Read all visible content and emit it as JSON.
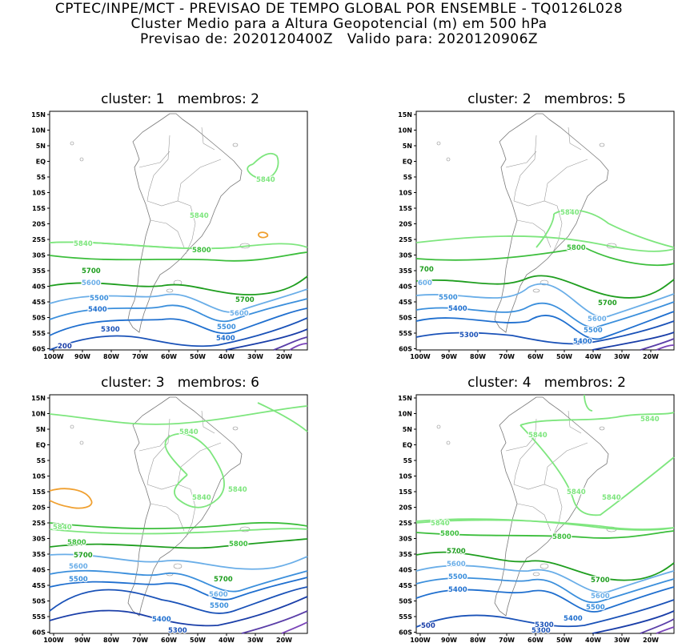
{
  "header": {
    "line1": "CPTEC/INPE/MCT - PREVISAO DE TEMPO GLOBAL POR ENSEMBLE - TQ0126L028",
    "line2": "Cluster Medio para a Altura Geopotencial (m) em 500 hPa",
    "line3": "Previsao de: 2020120400Z   Valido para: 2020120906Z"
  },
  "axes": {
    "lat_labels": [
      "15N",
      "10N",
      "5N",
      "EQ",
      "5S",
      "10S",
      "15S",
      "20S",
      "25S",
      "30S",
      "35S",
      "40S",
      "45S",
      "50S",
      "55S",
      "60S"
    ],
    "lon_labels": [
      "100W",
      "90W",
      "80W",
      "70W",
      "60W",
      "50W",
      "40W",
      "30W",
      "20W"
    ]
  },
  "panels": [
    {
      "title": "cluster: 1   membros: 2",
      "contour_labels": [
        {
          "text": "5840",
          "color": "#7ee67e"
        },
        {
          "text": "5840",
          "color": "#7ee67e"
        },
        {
          "text": "5840",
          "color": "#7ee67e"
        },
        {
          "text": "5800",
          "color": "#3cbe3c"
        },
        {
          "text": "5700",
          "color": "#1f9e1f"
        },
        {
          "text": "5700",
          "color": "#1f9e1f"
        },
        {
          "text": "5600",
          "color": "#6aaee8"
        },
        {
          "text": "5600",
          "color": "#6aaee8"
        },
        {
          "text": "5500",
          "color": "#3b8fdc"
        },
        {
          "text": "5500",
          "color": "#3b8fdc"
        },
        {
          "text": "5400",
          "color": "#1f6fcf"
        },
        {
          "text": "5400",
          "color": "#1f6fcf"
        },
        {
          "text": "5300",
          "color": "#1a52b8"
        },
        {
          "text": "200",
          "color": "#1a3ea8"
        }
      ]
    },
    {
      "title": "cluster: 2   membros: 5",
      "contour_labels": [
        {
          "text": "5840",
          "color": "#7ee67e"
        },
        {
          "text": "5800",
          "color": "#3cbe3c"
        },
        {
          "text": "700",
          "color": "#1f9e1f"
        },
        {
          "text": "5700",
          "color": "#1f9e1f"
        },
        {
          "text": "600",
          "color": "#6aaee8"
        },
        {
          "text": "5600",
          "color": "#6aaee8"
        },
        {
          "text": "5500",
          "color": "#3b8fdc"
        },
        {
          "text": "5500",
          "color": "#3b8fdc"
        },
        {
          "text": "5400",
          "color": "#1f6fcf"
        },
        {
          "text": "5400",
          "color": "#1f6fcf"
        },
        {
          "text": "5300",
          "color": "#1a52b8"
        }
      ]
    },
    {
      "title": "cluster: 3   membros: 6",
      "contour_labels": [
        {
          "text": "5840",
          "color": "#7ee67e"
        },
        {
          "text": "5840",
          "color": "#7ee67e"
        },
        {
          "text": "5840",
          "color": "#7ee67e"
        },
        {
          "text": "5840",
          "color": "#7ee67e"
        },
        {
          "text": "5800",
          "color": "#3cbe3c"
        },
        {
          "text": "5800",
          "color": "#3cbe3c"
        },
        {
          "text": "5700",
          "color": "#1f9e1f"
        },
        {
          "text": "5700",
          "color": "#1f9e1f"
        },
        {
          "text": "5600",
          "color": "#6aaee8"
        },
        {
          "text": "5600",
          "color": "#6aaee8"
        },
        {
          "text": "5500",
          "color": "#3b8fdc"
        },
        {
          "text": "5500",
          "color": "#3b8fdc"
        },
        {
          "text": "5400",
          "color": "#1f6fcf"
        },
        {
          "text": "5300",
          "color": "#1a52b8"
        }
      ]
    },
    {
      "title": "cluster: 4   membros: 2",
      "contour_labels": [
        {
          "text": "5840",
          "color": "#7ee67e"
        },
        {
          "text": "5840",
          "color": "#7ee67e"
        },
        {
          "text": "5840",
          "color": "#7ee67e"
        },
        {
          "text": "5840",
          "color": "#7ee67e"
        },
        {
          "text": "5840",
          "color": "#7ee67e"
        },
        {
          "text": "5800",
          "color": "#3cbe3c"
        },
        {
          "text": "5800",
          "color": "#3cbe3c"
        },
        {
          "text": "5700",
          "color": "#1f9e1f"
        },
        {
          "text": "5700",
          "color": "#1f9e1f"
        },
        {
          "text": "5600",
          "color": "#6aaee8"
        },
        {
          "text": "5600",
          "color": "#6aaee8"
        },
        {
          "text": "5500",
          "color": "#3b8fdc"
        },
        {
          "text": "5500",
          "color": "#3b8fdc"
        },
        {
          "text": "5400",
          "color": "#1f6fcf"
        },
        {
          "text": "5400",
          "color": "#1f6fcf"
        },
        {
          "text": "5300",
          "color": "#1a52b8"
        },
        {
          "text": "5300",
          "color": "#1a52b8"
        },
        {
          "text": "500",
          "color": "#1a3ea8"
        }
      ]
    }
  ]
}
